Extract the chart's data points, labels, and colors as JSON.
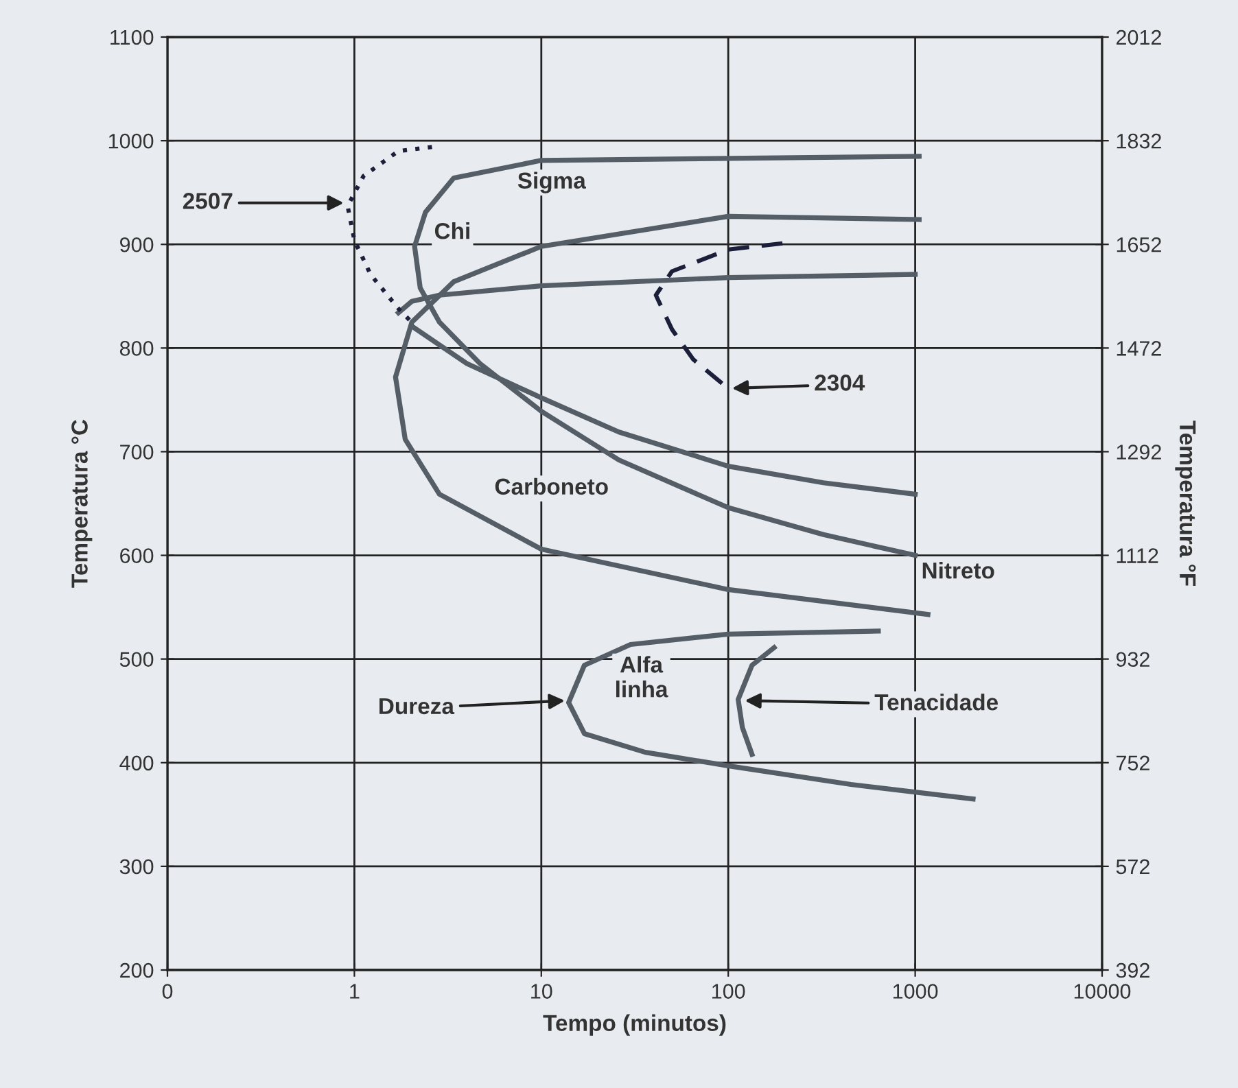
{
  "chart_data": {
    "type": "line",
    "xlabel": "Tempo (minutos)",
    "ylabel": "Temperatura °C",
    "y2label": "Temperatura °F",
    "log": "x",
    "xlim": [
      0.1,
      10000
    ],
    "xticks": [
      {
        "value": 0.1,
        "label": "0"
      },
      1,
      10,
      100,
      1000,
      10000
    ],
    "ylim": [
      200,
      1100
    ],
    "yticks": [
      200,
      300,
      400,
      500,
      600,
      700,
      800,
      900,
      1000,
      1100
    ],
    "y2lim": [
      392,
      2012
    ],
    "y2ticks": [
      392,
      572,
      752,
      932,
      1112,
      1292,
      1472,
      1652,
      1832,
      2012
    ],
    "grid": true,
    "marker": "none",
    "series": [
      {
        "color": "#555e66",
        "line_style": "solid",
        "x": [
          1050,
          10,
          3.4,
          2.4,
          2.1,
          2.25,
          2.85,
          4.7,
          10,
          26,
          100,
          323,
          1000
        ],
        "values": [
          985,
          981,
          964,
          931,
          898,
          858,
          825,
          785,
          739,
          692,
          646,
          620,
          600
        ]
      },
      {
        "color": "#555e66",
        "line_style": "solid",
        "x": [
          1050,
          100,
          10,
          3.4,
          2.03,
          1.66,
          1.87,
          2.85,
          10,
          100,
          1170
        ],
        "values": [
          924,
          927,
          898,
          864,
          825,
          772,
          712,
          659,
          606,
          567,
          543
        ]
      },
      {
        "color": "#555e66",
        "line_style": "solid",
        "x": [
          1000,
          100,
          10,
          2.85,
          2.03,
          1.72
        ],
        "values": [
          871,
          868,
          860,
          851,
          845,
          834
        ]
      },
      {
        "color": "#555e66",
        "line_style": "solid",
        "x": [
          2.03,
          4.0,
          10,
          26,
          100,
          323,
          1000
        ],
        "values": [
          821,
          785,
          752,
          719,
          686,
          670,
          659
        ]
      },
      {
        "color": "#1c1f3a",
        "line_style": "dotted",
        "x": [
          2.6,
          1.72,
          1.12,
          0.92,
          1,
          1.22,
          1.72,
          2.1
        ],
        "values": [
          994,
          990,
          966,
          937,
          904,
          871,
          838,
          822
        ]
      },
      {
        "color": "#1c1f3a",
        "line_style": "dashed",
        "x": [
          195,
          100,
          50,
          41,
          50,
          65,
          100
        ],
        "values": [
          901,
          895,
          874,
          851,
          818,
          789,
          761
        ]
      },
      {
        "color": "#555e66",
        "line_style": "solid",
        "x": [
          635,
          100,
          30,
          17,
          14,
          17,
          36,
          100,
          453,
          2040
        ],
        "values": [
          527,
          524,
          514,
          494,
          458,
          428,
          410,
          397,
          379,
          365
        ]
      },
      {
        "color": "#555e66",
        "line_style": "solid",
        "x": [
          176,
          134,
          113,
          119,
          134
        ],
        "values": [
          511,
          494,
          461,
          434,
          408
        ]
      }
    ],
    "annotations": [
      {
        "text": "2507",
        "x": 0.92,
        "y": 940
      },
      {
        "text": "2304",
        "x": 100,
        "y": 761
      },
      {
        "text": "Dureza",
        "x": 14,
        "y": 460
      },
      {
        "text": "Tenacidade",
        "x": 117,
        "y": 460
      },
      "Sigma",
      "Chi",
      "Carboneto",
      "Nitreto",
      "Alfa\nlinha"
    ]
  }
}
